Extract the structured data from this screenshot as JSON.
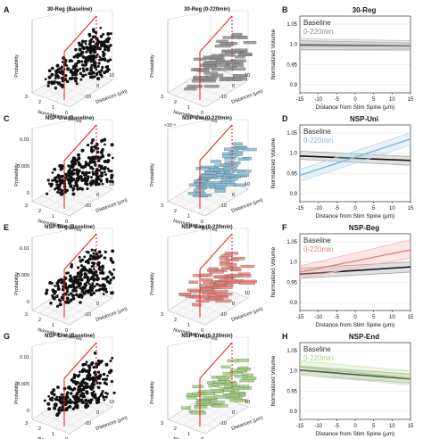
{
  "figure": {
    "rows": [
      {
        "panel_left": "A",
        "panel_right": "B",
        "title_baseline": "30-Reg (Baseline)",
        "title_window": "30-Reg (0-220min)",
        "scale_note_left": "",
        "scale_note_right": "",
        "line_title": "30-Reg",
        "legend_baseline": "Baseline",
        "legend_window": "0-220min",
        "window_color": "#8f8f8f",
        "window_band": "#c8c8c8",
        "z_ticks": [],
        "yticks_2d": [
          1.05,
          1,
          0.95,
          0.9
        ]
      },
      {
        "panel_left": "C",
        "panel_right": "D",
        "title_baseline": "NSP-Uni (Baseline)",
        "title_window": "NSP-Uni (0-220min)",
        "scale_note_left": "",
        "scale_note_right": "×10⁻³",
        "line_title": "NSP-Uni",
        "legend_baseline": "Baseline",
        "legend_window": "0-220min",
        "window_color": "#7fb9d6",
        "window_band": "#bddbea",
        "z_ticks": [
          "0.01",
          "0.005",
          "0"
        ],
        "yticks_2d": [
          1.05,
          1,
          0.95,
          0.9
        ]
      },
      {
        "panel_left": "E",
        "panel_right": "F",
        "title_baseline": "NSP-Beg (Baseline)",
        "title_window": "NSP-Beg (0-220min)",
        "scale_note_left": "",
        "scale_note_right": "",
        "line_title": "NSP-Beg",
        "legend_baseline": "Baseline",
        "legend_window": "0-220min",
        "window_color": "#ec7f77",
        "window_band": "#f4b9b4",
        "z_ticks": [
          "0.01",
          "0.005",
          "0"
        ],
        "yticks_2d": [
          1.05,
          1,
          0.95,
          0.9
        ]
      },
      {
        "panel_left": "G",
        "panel_right": "H",
        "title_baseline": "NSP-End (Baseline)",
        "title_window": "NSP-End (0-220min)",
        "scale_note_left": "",
        "scale_note_right": "",
        "line_title": "NSP-End",
        "legend_baseline": "Baseline",
        "legend_window": "0-220min",
        "window_color": "#9ed27b",
        "window_band": "#cde8b8",
        "z_ticks": [
          "0.01",
          "0.005",
          "0"
        ],
        "yticks_2d": [
          1.05,
          1,
          0.95,
          0.9
        ]
      }
    ],
    "axis3d": {
      "zlabel": "Probability",
      "xlabel": "Normalized Volumes",
      "ylabel": "Distances (μm)",
      "x_ticks": [
        "3",
        "2",
        "1",
        "0"
      ],
      "y_ticks": [
        "-10",
        "0",
        "10"
      ]
    },
    "axis2d": {
      "xlabel": "Distance from Stim Spine (μm)",
      "ylabel": "Normalized Volume",
      "x_ticks": [
        -15,
        -10,
        -5,
        0,
        5,
        10,
        15
      ],
      "xlim": [
        -15,
        15
      ],
      "ylim": [
        0.88,
        1.07
      ]
    },
    "colors": {
      "baseline": "#111111",
      "baseline_band": "#a9a9a9",
      "ref_line": "#e41a1c"
    }
  },
  "chart_data": [
    {
      "type": "line",
      "title": "30-Reg",
      "xlabel": "Distance from Stim Spine (μm)",
      "ylabel": "Normalized Volume",
      "xlim": [
        -15,
        15
      ],
      "ylim": [
        0.88,
        1.07
      ],
      "legend": "top-left",
      "series": [
        {
          "name": "Baseline",
          "x": [
            -15,
            15
          ],
          "y": [
            0.998,
            0.996
          ],
          "ci_low": [
            0.987,
            0.988
          ],
          "ci_high": [
            1.009,
            1.004
          ]
        },
        {
          "name": "0-220min",
          "x": [
            -15,
            15
          ],
          "y": [
            1.0,
            0.997
          ],
          "ci_low": [
            0.986,
            0.985
          ],
          "ci_high": [
            1.014,
            1.009
          ]
        }
      ]
    },
    {
      "type": "line",
      "title": "NSP-Uni",
      "xlabel": "Distance from Stim Spine (μm)",
      "ylabel": "Normalized Volume",
      "xlim": [
        -15,
        15
      ],
      "ylim": [
        0.88,
        1.07
      ],
      "legend": "top-left",
      "series": [
        {
          "name": "Baseline",
          "x": [
            -15,
            15
          ],
          "y": [
            0.993,
            0.982
          ],
          "ci_low": [
            0.985,
            0.97
          ],
          "ci_high": [
            1.005,
            0.992
          ]
        },
        {
          "name": "0-220min",
          "x": [
            -15,
            15
          ],
          "y": [
            0.945,
            1.035
          ],
          "ci_low": [
            0.93,
            1.02
          ],
          "ci_high": [
            0.96,
            1.05
          ]
        }
      ]
    },
    {
      "type": "line",
      "title": "NSP-Beg",
      "xlabel": "Distance from Stim Spine (μm)",
      "ylabel": "Normalized Volume",
      "xlim": [
        -15,
        15
      ],
      "ylim": [
        0.88,
        1.07
      ],
      "legend": "top-left",
      "series": [
        {
          "name": "Baseline",
          "x": [
            -15,
            15
          ],
          "y": [
            0.97,
            0.988
          ],
          "ci_low": [
            0.96,
            0.975
          ],
          "ci_high": [
            0.985,
            1.0
          ]
        },
        {
          "name": "0-220min",
          "x": [
            -15,
            15
          ],
          "y": [
            0.975,
            1.03
          ],
          "ci_low": [
            0.96,
            1.01
          ],
          "ci_high": [
            0.99,
            1.055
          ]
        }
      ]
    },
    {
      "type": "line",
      "title": "NSP-End",
      "xlabel": "Distance from Stim Spine (μm)",
      "ylabel": "Normalized Volume",
      "xlim": [
        -15,
        15
      ],
      "ylim": [
        0.88,
        1.07
      ],
      "legend": "top-left",
      "series": [
        {
          "name": "Baseline",
          "x": [
            -15,
            15
          ],
          "y": [
            1.002,
            0.98
          ],
          "ci_low": [
            0.99,
            0.97
          ],
          "ci_high": [
            1.012,
            0.992
          ]
        },
        {
          "name": "0-220min",
          "x": [
            -15,
            15
          ],
          "y": [
            1.01,
            0.982
          ],
          "ci_low": [
            0.99,
            0.965
          ],
          "ci_high": [
            1.025,
            1.0
          ]
        }
      ]
    }
  ]
}
